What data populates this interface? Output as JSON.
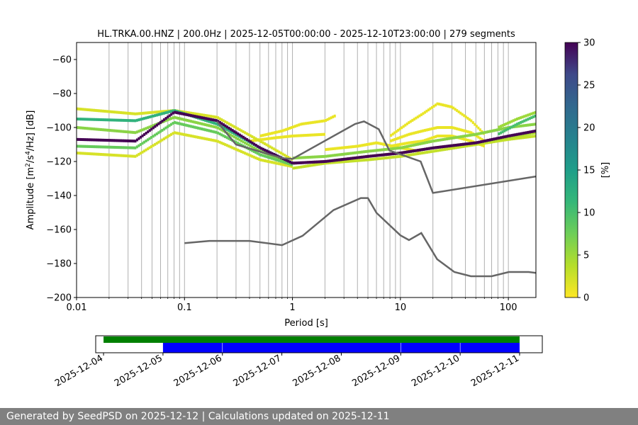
{
  "title": "HL.TRKA.00.HNZ | 200.0Hz | 2025-12-05T00:00:00 - 2025-12-10T23:00:00 | 279 segments",
  "footer_text": "Generated by SeedPSD on 2025-12-12 | Calculations updated on 2025-12-11",
  "chart_data": [
    {
      "type": "heatmap",
      "title": "HL.TRKA.00.HNZ | 200.0Hz | 2025-12-05T00:00:00 - 2025-12-10T23:00:00 | 279 segments",
      "xlabel": "Period [s]",
      "ylabel_parts": [
        "Amplitude [m",
        "2",
        "/s",
        "4",
        "/Hz] [dB]"
      ],
      "x_scale": "log",
      "xlim": [
        0.01,
        180
      ],
      "ylim": [
        -200,
        -50
      ],
      "x_ticks": [
        0.01,
        0.1,
        1,
        10,
        100
      ],
      "x_tick_labels": [
        "0.01",
        "0.1",
        "1",
        "10",
        "100"
      ],
      "y_ticks": [
        -200,
        -180,
        -160,
        -140,
        -120,
        -100,
        -80,
        -60
      ],
      "y_tick_labels": [
        "−200",
        "−180",
        "−160",
        "−140",
        "−120",
        "−100",
        "−80",
        "−60"
      ],
      "grid": "vertical log grid",
      "colorbar": {
        "label": "[%]",
        "range": [
          0,
          30
        ],
        "ticks": [
          0,
          5,
          10,
          15,
          20,
          25,
          30
        ],
        "tick_labels": [
          "0",
          "5",
          "10",
          "15",
          "20",
          "25",
          "30"
        ],
        "colormap": "viridis_r"
      },
      "density_bands": [
        {
          "period": [
            0.01,
            0.035,
            0.08,
            0.2,
            0.5,
            1,
            2,
            5,
            10,
            20,
            50,
            100,
            180
          ],
          "db": [
            -107,
            -108,
            -91,
            -96,
            -112,
            -121,
            -120,
            -117,
            -115,
            -112,
            -109,
            -105,
            -102
          ],
          "pct": 30
        },
        {
          "period": [
            0.01,
            0.035,
            0.08,
            0.2,
            0.5,
            1
          ],
          "db": [
            -95,
            -96,
            -90,
            -98,
            -112,
            -121
          ],
          "pct": 12
        },
        {
          "period": [
            0.01,
            0.035,
            0.08,
            0.2,
            0.5,
            1
          ],
          "db": [
            -111,
            -112,
            -97,
            -103,
            -116,
            -122
          ],
          "pct": 8
        },
        {
          "period": [
            0.01,
            0.035,
            0.08,
            0.2,
            0.5,
            1
          ],
          "db": [
            -100,
            -103,
            -94,
            -100,
            -114,
            -121
          ],
          "pct": 6
        },
        {
          "period": [
            0.01,
            0.035,
            0.08,
            0.2,
            0.5,
            1
          ],
          "db": [
            -89,
            -92,
            -90,
            -94,
            -108,
            -119
          ],
          "pct": 2
        },
        {
          "period": [
            0.01,
            0.035,
            0.08,
            0.2,
            0.5,
            1
          ],
          "db": [
            -115,
            -117,
            -103,
            -108,
            -119,
            -123
          ],
          "pct": 2
        },
        {
          "period": [
            1,
            2,
            5,
            10,
            20,
            50,
            100,
            180
          ],
          "db": [
            -121,
            -120,
            -117,
            -115,
            -112,
            -109,
            -106,
            -103
          ],
          "pct": 4
        },
        {
          "period": [
            1,
            2,
            5,
            10,
            20,
            50,
            100,
            180
          ],
          "db": [
            -118,
            -117,
            -114,
            -112,
            -108,
            -104,
            -100,
            -98
          ],
          "pct": 6
        },
        {
          "period": [
            1,
            2,
            5,
            10,
            20,
            50,
            100,
            180
          ],
          "db": [
            -124,
            -121,
            -119,
            -117,
            -114,
            -110,
            -107,
            -105
          ],
          "pct": 3
        },
        {
          "period": [
            80,
            120,
            180
          ],
          "db": [
            -100,
            -95,
            -91
          ],
          "pct": 5
        },
        {
          "period": [
            80,
            120,
            180
          ],
          "db": [
            -104,
            -98,
            -93
          ],
          "pct": 10
        },
        {
          "period": [
            0.5,
            0.8,
            1.2,
            2,
            2.5
          ],
          "db": [
            -105,
            -102,
            -98,
            -96,
            -93
          ],
          "pct": 1
        },
        {
          "period": [
            0.4,
            0.7,
            1,
            2
          ],
          "db": [
            -108,
            -106,
            -105,
            -104
          ],
          "pct": 1
        },
        {
          "period": [
            8,
            12,
            16,
            22,
            30,
            45,
            60
          ],
          "db": [
            -105,
            -97,
            -92,
            -86,
            -88,
            -96,
            -104
          ],
          "pct": 1
        },
        {
          "period": [
            8,
            12,
            16,
            22,
            30,
            45,
            60
          ],
          "db": [
            -108,
            -104,
            -102,
            -100,
            -100,
            -103,
            -108
          ],
          "pct": 1
        },
        {
          "period": [
            8,
            12,
            16,
            22,
            30,
            45,
            60
          ],
          "db": [
            -111,
            -109,
            -108,
            -105,
            -105,
            -108,
            -111
          ],
          "pct": 1
        },
        {
          "period": [
            2,
            4,
            6,
            10,
            15
          ],
          "db": [
            -113,
            -111,
            -109,
            -112,
            -114
          ],
          "pct": 1
        }
      ],
      "model_curves": [
        {
          "period": [
            0.1,
            0.17,
            0.4,
            0.8,
            1.24,
            2.4,
            4.3,
            5,
            6,
            10,
            12,
            15.6,
            21.9,
            31.6,
            45,
            70,
            101,
            154,
            180
          ],
          "db": [
            -168.0,
            -166.7,
            -166.7,
            -169.2,
            -163.7,
            -148.6,
            -141.5,
            -141.5,
            -150.2,
            -163.4,
            -166.2,
            -162.1,
            -177.5,
            -185.0,
            -187.5,
            -187.5,
            -185.0,
            -185.0,
            -185.5
          ]
        },
        {
          "period": [
            0.2,
            0.3,
            0.8,
            1.0,
            3.8,
            4.6,
            6.3,
            7.9,
            15.4,
            20,
            180
          ],
          "db": [
            -96.5,
            -110.0,
            -118.0,
            -118.5,
            -97.9,
            -96.4,
            -101.0,
            -113.5,
            -120.0,
            -138.5,
            -128.8
          ]
        }
      ]
    },
    {
      "type": "timeline",
      "x_tick_labels": [
        "2025-12-04",
        "2025-12-05",
        "2025-12-06",
        "2025-12-07",
        "2025-12-08",
        "2025-12-09",
        "2025-12-10",
        "2025-12-11"
      ],
      "xlim": [
        "2025-12-03T20:50",
        "2025-12-11T09:10"
      ],
      "available_data": [
        {
          "start": "2025-12-04T00:00",
          "end": "2025-12-11T00:00",
          "color": "#008000"
        }
      ],
      "psd_segments": [
        {
          "start": "2025-12-05T00:00",
          "end": "2025-12-05T23:55",
          "color": "#0000ff"
        },
        {
          "start": "2025-12-06T00:05",
          "end": "2025-12-08T23:55",
          "color": "#0000ff"
        },
        {
          "start": "2025-12-09T00:05",
          "end": "2025-12-09T23:55",
          "color": "#0000ff"
        },
        {
          "start": "2025-12-10T00:05",
          "end": "2025-12-11T00:00",
          "color": "#0000ff"
        }
      ]
    }
  ]
}
